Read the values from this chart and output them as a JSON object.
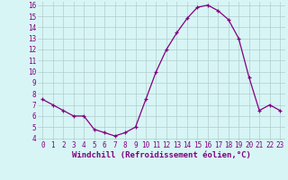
{
  "x": [
    0,
    1,
    2,
    3,
    4,
    5,
    6,
    7,
    8,
    9,
    10,
    11,
    12,
    13,
    14,
    15,
    16,
    17,
    18,
    19,
    20,
    21,
    22,
    23
  ],
  "y": [
    7.5,
    7.0,
    6.5,
    6.0,
    6.0,
    4.8,
    4.5,
    4.2,
    4.5,
    5.0,
    7.5,
    10.0,
    12.0,
    13.5,
    14.8,
    15.8,
    16.0,
    15.5,
    14.7,
    13.0,
    9.5,
    6.5,
    7.0,
    6.5
  ],
  "line_color": "#800080",
  "marker": "+",
  "marker_size": 3,
  "bg_color": "#d8f5f5",
  "grid_color": "#b0cccc",
  "xlabel": "Windchill (Refroidissement éolien,°C)",
  "xlim_min": -0.5,
  "xlim_max": 23.5,
  "ylim_min": 3.8,
  "ylim_max": 16.3,
  "yticks": [
    4,
    5,
    6,
    7,
    8,
    9,
    10,
    11,
    12,
    13,
    14,
    15,
    16
  ],
  "xticks": [
    0,
    1,
    2,
    3,
    4,
    5,
    6,
    7,
    8,
    9,
    10,
    11,
    12,
    13,
    14,
    15,
    16,
    17,
    18,
    19,
    20,
    21,
    22,
    23
  ],
  "xlabel_fontsize": 6.5,
  "tick_fontsize": 5.5,
  "label_color": "#800080",
  "linewidth": 0.9,
  "markeredgewidth": 0.9
}
